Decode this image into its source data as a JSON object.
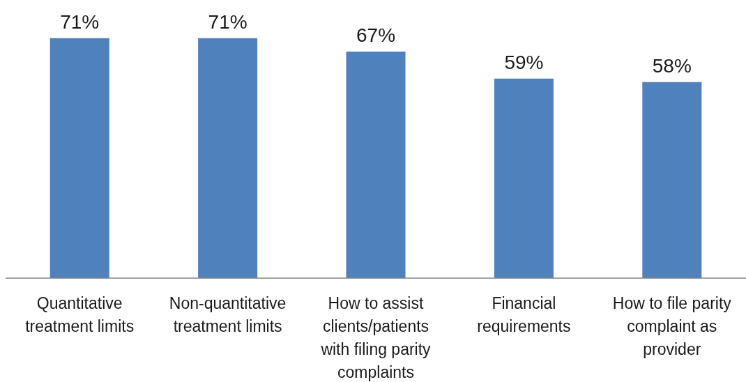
{
  "chart_data": {
    "type": "bar",
    "categories": [
      "Quantitative treatment limits",
      "Non-quantitative treatment limits",
      "How to assist clients/patients with filing parity complaints",
      "Financial requirements",
      "How to file parity complaint as provider"
    ],
    "values": [
      71,
      71,
      67,
      59,
      58
    ],
    "value_labels": [
      "71%",
      "71%",
      "67%",
      "59%",
      "58%"
    ],
    "color": "#4f81bd",
    "tick_labels": "x"
  }
}
